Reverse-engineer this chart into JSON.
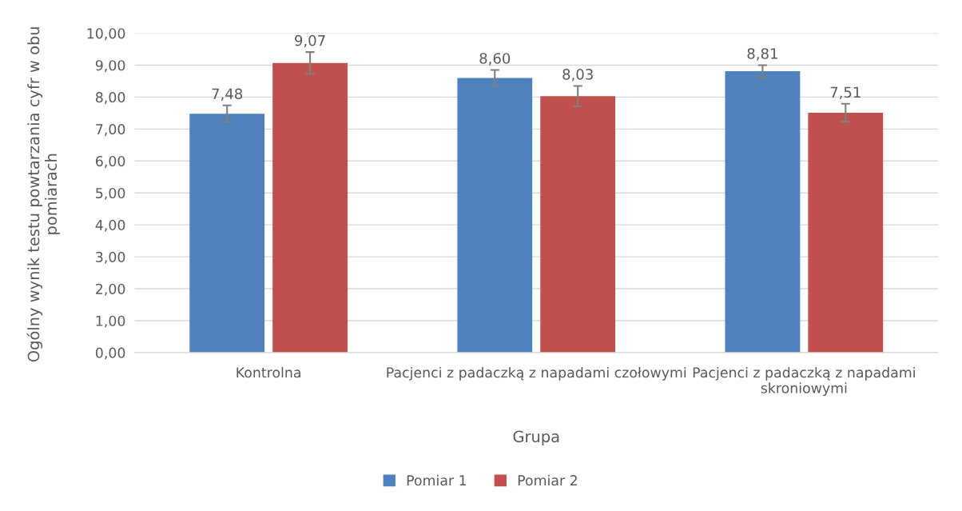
{
  "chart_data": {
    "type": "bar",
    "xlabel": "Grupa",
    "ylabel": "Ogólny wynik testu powtarzania cyfr w obu pomiarach",
    "categories": [
      "Kontrolna",
      "Pacjenci z padaczką z napadami czołowymi",
      "Pacjenci z padaczką z napadami skroniowymi"
    ],
    "series": [
      {
        "name": "Pomiar 1",
        "color": "#4f81bd",
        "values": [
          7.48,
          8.6,
          8.81
        ],
        "errors": [
          0.26,
          0.25,
          0.19
        ],
        "value_labels": [
          "7,48",
          "8,60",
          "8,81"
        ]
      },
      {
        "name": "Pomiar 2",
        "color": "#c0504d",
        "values": [
          9.07,
          8.03,
          7.51
        ],
        "errors": [
          0.34,
          0.32,
          0.28
        ],
        "value_labels": [
          "9,07",
          "8,03",
          "7,51"
        ]
      }
    ],
    "ylim": [
      0,
      10
    ],
    "yticks": [
      {
        "value": 0,
        "label": "0,00"
      },
      {
        "value": 1,
        "label": "1,00"
      },
      {
        "value": 2,
        "label": "2,00"
      },
      {
        "value": 3,
        "label": "3,00"
      },
      {
        "value": 4,
        "label": "4,00"
      },
      {
        "value": 5,
        "label": "5,00"
      },
      {
        "value": 6,
        "label": "6,00"
      },
      {
        "value": 7,
        "label": "7,00"
      },
      {
        "value": 8,
        "label": "8,00"
      },
      {
        "value": 9,
        "label": "9,00"
      },
      {
        "value": 10,
        "label": "10,00"
      }
    ],
    "grid": "y",
    "legend": "bottom"
  }
}
